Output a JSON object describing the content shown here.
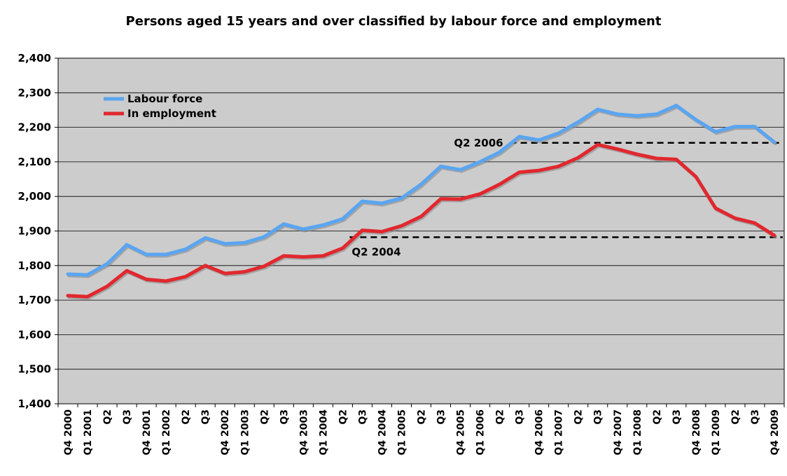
{
  "chart_data": {
    "type": "line",
    "title": "Persons aged 15 years and over classified by labour force and employment",
    "xlabel": "",
    "ylabel": "",
    "ylim": [
      1400,
      2400
    ],
    "yticks": [
      "1,400",
      "1,500",
      "1,600",
      "1,700",
      "1,800",
      "1,900",
      "2,000",
      "2,100",
      "2,200",
      "2,300",
      "2,400"
    ],
    "yticks_values": [
      1400,
      1500,
      1600,
      1700,
      1800,
      1900,
      2000,
      2100,
      2200,
      2300,
      2400
    ],
    "grid": true,
    "legend_position": "top-left",
    "categories": [
      "Q4 2000",
      "Q1 2001",
      "Q2",
      "Q3",
      "Q4 2001",
      "Q1 2002",
      "Q2",
      "Q3",
      "Q4 2002",
      "Q1 2003",
      "Q2",
      "Q3",
      "Q4 2003",
      "Q1 2004",
      "Q2",
      "Q3",
      "Q4 2004",
      "Q1 2005",
      "Q2",
      "Q3",
      "Q4 2005",
      "Q1 2006",
      "Q2",
      "Q3",
      "Q4 2006",
      "Q1 2007",
      "Q2",
      "Q3",
      "Q4 2007",
      "Q1 2008",
      "Q2",
      "Q3",
      "Q4 2008",
      "Q1 2009",
      "Q2",
      "Q3",
      "Q4 2009"
    ],
    "series": [
      {
        "name": "Labour force",
        "color": "#5aa5f0",
        "values": [
          1775,
          1773,
          1805,
          1860,
          1832,
          1832,
          1847,
          1880,
          1863,
          1866,
          1883,
          1920,
          1905,
          1917,
          1935,
          1986,
          1980,
          1995,
          2035,
          2087,
          2077,
          2100,
          2128,
          2173,
          2163,
          2183,
          2215,
          2252,
          2238,
          2233,
          2238,
          2263,
          2222,
          2187,
          2202,
          2202,
          2157
        ]
      },
      {
        "name": "In employment",
        "color": "#e0282e",
        "values": [
          1713,
          1710,
          1740,
          1785,
          1760,
          1755,
          1768,
          1800,
          1777,
          1782,
          1798,
          1828,
          1825,
          1828,
          1850,
          1902,
          1898,
          1915,
          1942,
          1993,
          1992,
          2007,
          2035,
          2070,
          2075,
          2087,
          2112,
          2150,
          2137,
          2122,
          2110,
          2107,
          2057,
          1966,
          1937,
          1923,
          1887
        ]
      }
    ],
    "annotations": [
      {
        "text": "Q2 2006",
        "value": 2155,
        "line": "dashed"
      },
      {
        "text": "Q2 2004",
        "value": 1882,
        "line": "dashed"
      }
    ],
    "colors": {
      "plot_background": "#cccccc",
      "gridline": "#000000"
    }
  }
}
